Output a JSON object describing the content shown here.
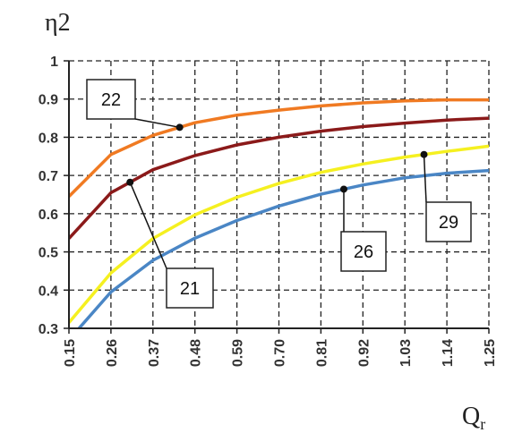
{
  "chart_data": {
    "type": "line",
    "title": "",
    "ylabel": "η2",
    "xlabel": "Q",
    "xlabel_subscript": "r",
    "ylim": [
      0.3,
      1.0
    ],
    "yticks": [
      "0.3",
      "0.4",
      "0.5",
      "0.6",
      "0.7",
      "0.8",
      "0.9",
      "1"
    ],
    "xticks": [
      "0.15",
      "0.26",
      "0.37",
      "0.48",
      "0.59",
      "0.70",
      "0.81",
      "0.92",
      "1.03",
      "1.14",
      "1.25"
    ],
    "x": [
      0.15,
      0.26,
      0.37,
      0.48,
      0.59,
      0.7,
      0.81,
      0.92,
      1.03,
      1.14,
      1.25
    ],
    "grid": true,
    "series": [
      {
        "name": "22",
        "color": "#f07a22",
        "values": [
          0.645,
          0.755,
          0.805,
          0.838,
          0.858,
          0.871,
          0.882,
          0.89,
          0.895,
          0.898,
          0.898
        ]
      },
      {
        "name": "21",
        "color": "#8b1a1a",
        "values": [
          0.535,
          0.655,
          0.715,
          0.752,
          0.78,
          0.8,
          0.816,
          0.828,
          0.837,
          0.845,
          0.85
        ]
      },
      {
        "name": "29",
        "color": "#f5f020",
        "values": [
          0.315,
          0.445,
          0.535,
          0.597,
          0.643,
          0.679,
          0.708,
          0.73,
          0.748,
          0.763,
          0.777
        ]
      },
      {
        "name": "26",
        "color": "#4a86c5",
        "values": [
          0.27,
          0.395,
          0.478,
          0.536,
          0.582,
          0.62,
          0.651,
          0.675,
          0.694,
          0.706,
          0.713
        ]
      }
    ]
  }
}
